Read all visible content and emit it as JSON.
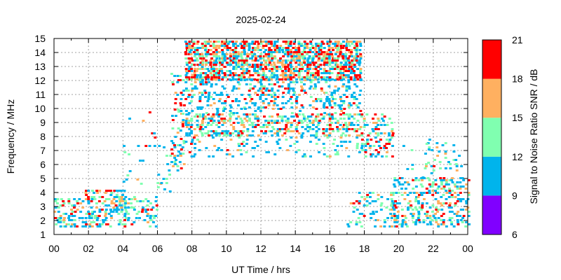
{
  "chart_data": {
    "type": "heatmap",
    "title": "2025-02-24",
    "xlabel": "UT Time / hrs",
    "ylabel": "Frequency / MHz",
    "xlim": [
      0,
      24
    ],
    "ylim": [
      1,
      15
    ],
    "x_tick_labels": [
      "00",
      "02",
      "04",
      "06",
      "08",
      "10",
      "12",
      "14",
      "16",
      "18",
      "20",
      "22",
      "00"
    ],
    "y_tick_labels": [
      "1",
      "2",
      "3",
      "4",
      "5",
      "6",
      "7",
      "8",
      "9",
      "10",
      "11",
      "12",
      "13",
      "14",
      "15"
    ],
    "grid": true,
    "colorbar": {
      "label": "Signal to Noise Ratio SNR / dB",
      "range": [
        6,
        21
      ],
      "tick_labels": [
        "6",
        "9",
        "12",
        "15",
        "18",
        "21"
      ],
      "bands": [
        {
          "from": 6,
          "to": 9,
          "color": "#8000ff"
        },
        {
          "from": 9,
          "to": 12,
          "color": "#00b4ec"
        },
        {
          "from": 12,
          "to": 15,
          "color": "#80ffb0"
        },
        {
          "from": 15,
          "to": 18,
          "color": "#ffb060"
        },
        {
          "from": 18,
          "to": 21,
          "color": "#ff0000"
        }
      ]
    },
    "point_bin": {
      "hours": 0.16,
      "mhz": 0.15
    },
    "clusters": [
      {
        "t": [
          0.0,
          1.8
        ],
        "f": [
          1.5,
          3.5
        ],
        "density": 0.45,
        "snr_weights": [
          0.45,
          0.25,
          0.15,
          0.15
        ]
      },
      {
        "t": [
          1.8,
          4.1
        ],
        "f": [
          1.5,
          4.1
        ],
        "density": 0.5,
        "snr_weights": [
          0.4,
          0.2,
          0.2,
          0.2
        ]
      },
      {
        "t": [
          4.1,
          6.0
        ],
        "f": [
          1.5,
          3.7
        ],
        "density": 0.35,
        "snr_weights": [
          0.5,
          0.3,
          0.1,
          0.1
        ]
      },
      {
        "t": [
          4.0,
          6.2
        ],
        "f": [
          3.8,
          10.0
        ],
        "density": 0.03,
        "snr_weights": [
          0.6,
          0.1,
          0.1,
          0.2
        ]
      },
      {
        "t": [
          6.0,
          6.8
        ],
        "f": [
          4.0,
          7.5
        ],
        "density": 0.18,
        "snr_weights": [
          0.4,
          0.4,
          0.15,
          0.05
        ]
      },
      {
        "t": [
          6.8,
          7.6
        ],
        "f": [
          5.5,
          12.8
        ],
        "density": 0.3,
        "snr_weights": [
          0.4,
          0.2,
          0.15,
          0.25
        ]
      },
      {
        "t": [
          7.6,
          17.8
        ],
        "f": [
          12.0,
          14.8
        ],
        "density": 0.75,
        "snr_weights": [
          0.3,
          0.2,
          0.2,
          0.3
        ]
      },
      {
        "t": [
          7.6,
          17.8
        ],
        "f": [
          10.0,
          12.0
        ],
        "density": 0.3,
        "snr_weights": [
          0.6,
          0.15,
          0.15,
          0.1
        ]
      },
      {
        "t": [
          7.6,
          17.8
        ],
        "f": [
          8.0,
          9.6
        ],
        "density": 0.5,
        "snr_weights": [
          0.35,
          0.3,
          0.2,
          0.15
        ]
      },
      {
        "t": [
          7.6,
          17.8
        ],
        "f": [
          6.5,
          8.0
        ],
        "density": 0.15,
        "snr_weights": [
          0.6,
          0.25,
          0.1,
          0.05
        ]
      },
      {
        "t": [
          7.0,
          17.8
        ],
        "f": [
          9.6,
          10.0
        ],
        "density": 0.15,
        "snr_weights": [
          0.6,
          0.2,
          0.1,
          0.1
        ]
      },
      {
        "t": [
          17.8,
          19.6
        ],
        "f": [
          6.5,
          9.6
        ],
        "density": 0.35,
        "snr_weights": [
          0.35,
          0.3,
          0.15,
          0.2
        ]
      },
      {
        "t": [
          17.0,
          20.0
        ],
        "f": [
          1.5,
          4.0
        ],
        "density": 0.22,
        "snr_weights": [
          0.5,
          0.3,
          0.1,
          0.1
        ]
      },
      {
        "t": [
          19.5,
          24.0
        ],
        "f": [
          1.5,
          5.0
        ],
        "density": 0.35,
        "snr_weights": [
          0.45,
          0.25,
          0.15,
          0.15
        ]
      },
      {
        "t": [
          21.5,
          24.0
        ],
        "f": [
          5.5,
          7.6
        ],
        "density": 0.12,
        "snr_weights": [
          0.5,
          0.3,
          0.15,
          0.05
        ]
      },
      {
        "t": [
          19.6,
          22.0
        ],
        "f": [
          5.0,
          8.5
        ],
        "density": 0.03,
        "snr_weights": [
          0.8,
          0.2,
          0.0,
          0.0
        ]
      }
    ]
  }
}
